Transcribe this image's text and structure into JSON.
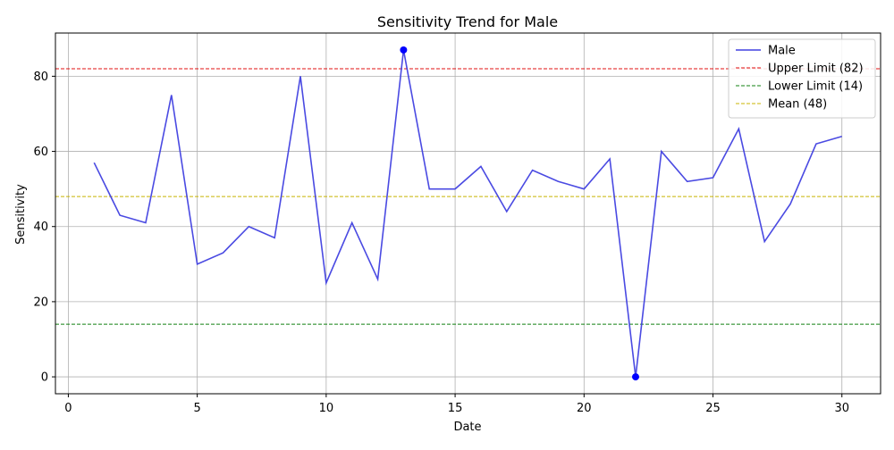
{
  "chart_data": {
    "type": "line",
    "title": "Sensitivity Trend for Male",
    "xlabel": "Date",
    "ylabel": "Sensitivity",
    "xlim": [
      -0.5,
      31.5
    ],
    "ylim": [
      -4.5,
      91.5
    ],
    "xticks": [
      0,
      5,
      10,
      15,
      20,
      25,
      30
    ],
    "yticks": [
      0,
      20,
      40,
      60,
      80
    ],
    "grid": true,
    "legend_position": "top-right",
    "series": [
      {
        "name": "Male",
        "color": "#4040e0",
        "x": [
          1,
          2,
          3,
          4,
          5,
          6,
          7,
          8,
          9,
          10,
          11,
          12,
          13,
          14,
          15,
          16,
          17,
          18,
          19,
          20,
          21,
          22,
          23,
          24,
          25,
          26,
          27,
          28,
          29,
          30
        ],
        "y": [
          57,
          43,
          41,
          75,
          30,
          33,
          40,
          37,
          80,
          25,
          41,
          26,
          87,
          50,
          50,
          56,
          44,
          55,
          52,
          50,
          58,
          0,
          60,
          52,
          53,
          66,
          36,
          46,
          62,
          64
        ]
      }
    ],
    "reference_lines": [
      {
        "name": "Upper Limit (82)",
        "value": 82,
        "color": "#e01010"
      },
      {
        "name": "Lower Limit (14)",
        "value": 14,
        "color": "#108010"
      },
      {
        "name": "Mean (48)",
        "value": 48,
        "color": "#c8b400"
      }
    ],
    "highlighted_points": [
      {
        "x": 13,
        "y": 87,
        "color": "#0000ff"
      },
      {
        "x": 22,
        "y": 0,
        "color": "#0000ff"
      }
    ]
  }
}
